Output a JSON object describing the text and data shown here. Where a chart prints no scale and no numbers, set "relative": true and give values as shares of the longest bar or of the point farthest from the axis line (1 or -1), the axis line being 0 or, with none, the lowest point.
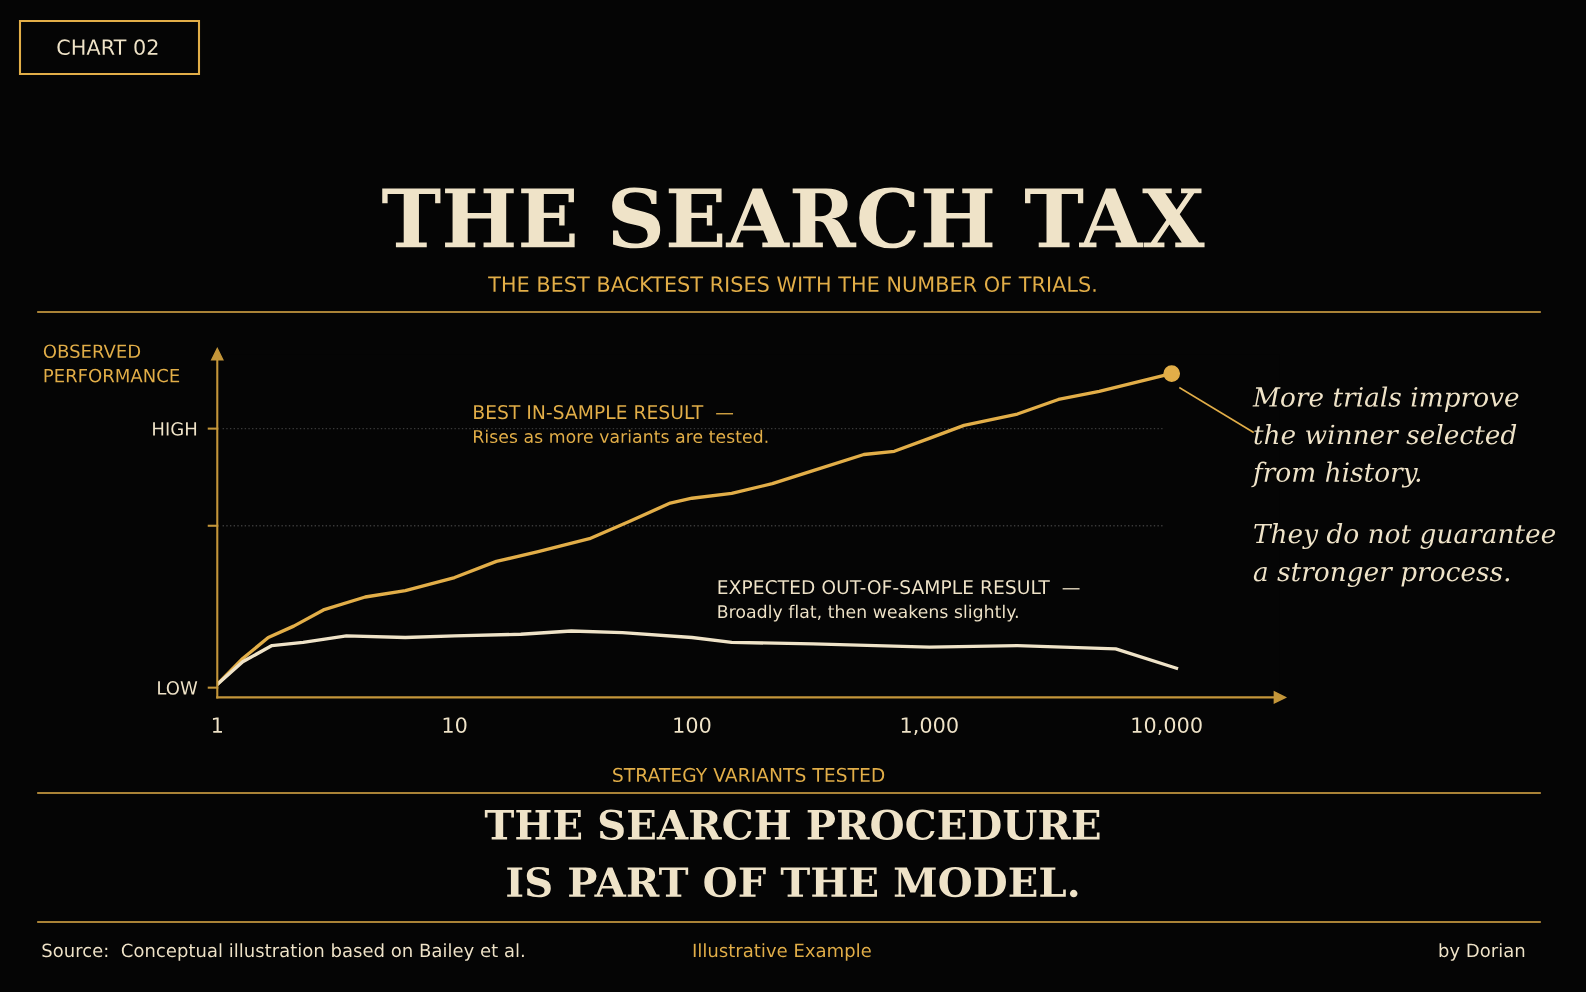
{
  "chart_data": {
    "type": "line",
    "title": "THE SEARCH TAX",
    "subtitle": "THE BEST BACKTEST RISES WITH THE NUMBER OF TRIALS.",
    "xlabel": "STRATEGY VARIANTS TESTED",
    "ylabel": "OBSERVED\nPERFORMANCE",
    "relative": true,
    "log": "x",
    "xlim": [
      1,
      30000
    ],
    "xticks": [
      1,
      10,
      100,
      {
        "value": 1000,
        "label": "1,000"
      },
      {
        "value": 10000,
        "label": "10,000"
      }
    ],
    "grid": false,
    "legend": false,
    "line_style": "solid",
    "ref_lines": [
      {
        "axis": "y",
        "value": 0.83,
        "label": "HIGH",
        "color": "#3a3a3a",
        "line_style": "dotted"
      },
      {
        "axis": "y",
        "value": 0.53,
        "label": null,
        "color": "#3a3a3a",
        "line_style": "dotted"
      },
      {
        "axis": "y",
        "value": 0.03,
        "label": "LOW"
      }
    ],
    "series": [
      {
        "name": "BEST IN-SAMPLE RESULT  —",
        "color": "#e2ae48",
        "x": [
          1,
          1.28,
          1.64,
          2.1,
          2.8,
          4.2,
          6.2,
          10,
          15,
          22.5,
          37,
          55,
          81,
          100,
          147,
          218,
          324,
          530,
          712,
          1000,
          1400,
          2350,
          3500,
          5200,
          10500
        ],
        "values": [
          0.04,
          0.12,
          0.185,
          0.22,
          0.27,
          0.31,
          0.33,
          0.37,
          0.42,
          0.45,
          0.49,
          0.545,
          0.6,
          0.615,
          0.63,
          0.66,
          0.7,
          0.75,
          0.76,
          0.8,
          0.84,
          0.875,
          0.92,
          0.945,
          1.0
        ]
      },
      {
        "name": "EXPECTED OUT-OF-SAMPLE RESULT  —",
        "color": "#efe3c8",
        "x": [
          1,
          1.28,
          1.7,
          2.3,
          3.5,
          6.2,
          10,
          19,
          31,
          51,
          100,
          147,
          324,
          1000,
          2350,
          6100,
          11000
        ],
        "values": [
          0.04,
          0.11,
          0.16,
          0.17,
          0.19,
          0.185,
          0.19,
          0.195,
          0.205,
          0.2,
          0.185,
          0.17,
          0.165,
          0.155,
          0.16,
          0.15,
          0.09
        ]
      }
    ],
    "annotations": [
      "CHART 02",
      "Rises as more variants are tested.",
      "Broadly flat, then weakens slightly.",
      "More trials improve\nthe winner selected\nfrom history.",
      "They do not guarantee\na stronger process.",
      "THE SEARCH PROCEDURE\nIS PART OF THE MODEL.",
      "Source:  Conceptual illustration based on Bailey et al.",
      "Illustrative Example",
      "by Dorian"
    ]
  }
}
